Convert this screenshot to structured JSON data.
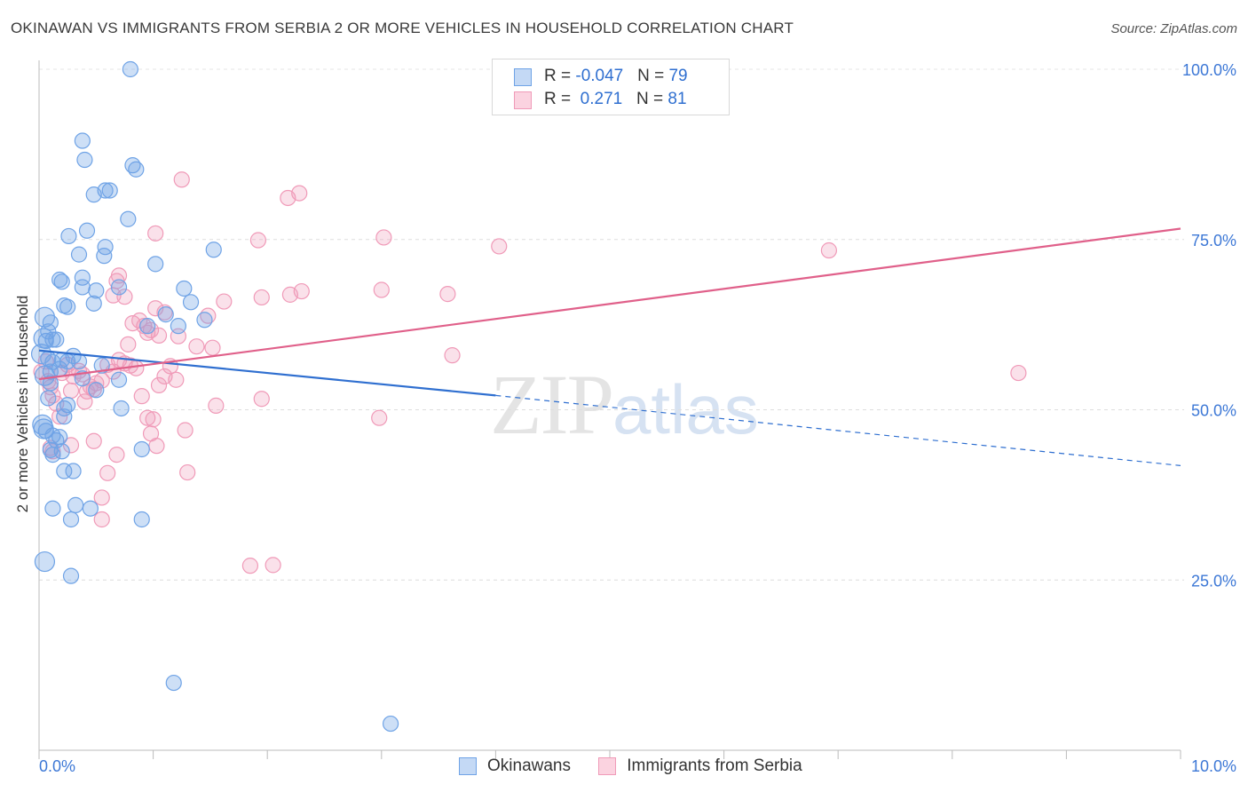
{
  "title": "OKINAWAN VS IMMIGRANTS FROM SERBIA 2 OR MORE VEHICLES IN HOUSEHOLD CORRELATION CHART",
  "source": "Source: ZipAtlas.com",
  "watermark": {
    "zip": "ZIP",
    "atlas": "atlas"
  },
  "colors": {
    "blue": "#6fa3e6",
    "pink": "#f09ab8",
    "blue_line": "#2f6fd0",
    "pink_line": "#e0608a",
    "tick_label": "#3d78d6"
  },
  "legend_top": [
    {
      "r_label": "R = ",
      "r_value": "-0.047",
      "n_label": "N = ",
      "n_value": "79"
    },
    {
      "r_label": "R = ",
      "r_value": " 0.271",
      "n_label": "N = ",
      "n_value": "81"
    }
  ],
  "legend_bottom": [
    "Okinawans",
    "Immigrants from Serbia"
  ],
  "chart_data": {
    "type": "scatter",
    "title": "OKINAWAN VS IMMIGRANTS FROM SERBIA 2 OR MORE VEHICLES IN HOUSEHOLD CORRELATION CHART",
    "xlabel": "",
    "ylabel": "2 or more Vehicles in Household",
    "xlim": [
      0,
      10
    ],
    "ylim": [
      0,
      100
    ],
    "x_tick_labels": [
      "0.0%",
      "10.0%"
    ],
    "y_ticks": [
      25,
      50,
      75,
      100
    ],
    "y_tick_labels": [
      "25.0%",
      "50.0%",
      "75.0%",
      "100.0%"
    ],
    "grid": true,
    "series": [
      {
        "name": "Okinawans",
        "R": -0.047,
        "N": 79,
        "trend": {
          "x0": 0,
          "y0": 58.7,
          "x1": 4,
          "y1": 52.1,
          "dashed_to_x": 10,
          "dashed_to_y": 41.8
        },
        "points": [
          [
            0.02,
            58.2
          ],
          [
            0.04,
            60.5
          ],
          [
            0.06,
            60.1
          ],
          [
            0.08,
            61.5
          ],
          [
            0.05,
            63.6
          ],
          [
            0.1,
            62.8
          ],
          [
            0.12,
            60.3
          ],
          [
            0.15,
            60.3
          ],
          [
            0.18,
            69.1
          ],
          [
            0.2,
            68.8
          ],
          [
            0.22,
            65.3
          ],
          [
            0.25,
            65.1
          ],
          [
            0.08,
            57.5
          ],
          [
            0.12,
            57.0
          ],
          [
            0.2,
            57.3
          ],
          [
            0.25,
            57.1
          ],
          [
            0.3,
            57.9
          ],
          [
            0.35,
            57.1
          ],
          [
            0.18,
            56.0
          ],
          [
            0.1,
            55.6
          ],
          [
            0.05,
            55.0
          ],
          [
            0.1,
            53.9
          ],
          [
            0.08,
            51.7
          ],
          [
            0.03,
            47.8
          ],
          [
            0.04,
            47.2
          ],
          [
            0.06,
            46.9
          ],
          [
            0.12,
            46.2
          ],
          [
            0.18,
            46.0
          ],
          [
            0.15,
            45.5
          ],
          [
            0.2,
            43.9
          ],
          [
            0.1,
            44.1
          ],
          [
            0.12,
            43.4
          ],
          [
            0.22,
            41.0
          ],
          [
            0.3,
            41.0
          ],
          [
            0.12,
            35.5
          ],
          [
            0.32,
            36.0
          ],
          [
            0.45,
            35.5
          ],
          [
            0.28,
            33.9
          ],
          [
            0.9,
            33.9
          ],
          [
            0.05,
            27.7
          ],
          [
            0.28,
            25.6
          ],
          [
            1.18,
            9.9
          ],
          [
            3.08,
            3.9
          ],
          [
            0.8,
            100.0
          ],
          [
            0.38,
            89.5
          ],
          [
            0.4,
            86.7
          ],
          [
            0.82,
            85.9
          ],
          [
            0.85,
            85.3
          ],
          [
            0.48,
            81.6
          ],
          [
            0.58,
            82.2
          ],
          [
            0.62,
            82.2
          ],
          [
            0.78,
            78.0
          ],
          [
            0.42,
            76.3
          ],
          [
            0.26,
            75.5
          ],
          [
            0.58,
            73.9
          ],
          [
            0.35,
            72.8
          ],
          [
            0.57,
            72.6
          ],
          [
            1.02,
            71.4
          ],
          [
            1.53,
            73.5
          ],
          [
            0.38,
            69.4
          ],
          [
            0.38,
            68.0
          ],
          [
            0.5,
            67.5
          ],
          [
            0.7,
            68.0
          ],
          [
            1.27,
            67.8
          ],
          [
            0.48,
            65.6
          ],
          [
            1.33,
            65.8
          ],
          [
            1.45,
            63.2
          ],
          [
            1.11,
            64.0
          ],
          [
            0.95,
            62.3
          ],
          [
            1.22,
            62.3
          ],
          [
            0.55,
            56.5
          ],
          [
            0.38,
            54.6
          ],
          [
            0.25,
            50.7
          ],
          [
            0.22,
            50.2
          ],
          [
            0.5,
            52.9
          ],
          [
            0.7,
            54.4
          ],
          [
            0.72,
            50.2
          ],
          [
            0.9,
            44.2
          ],
          [
            0.22,
            49.0
          ]
        ]
      },
      {
        "name": "Immigrants from Serbia",
        "R": 0.271,
        "N": 81,
        "trend": {
          "x0": 0,
          "y0": 54.5,
          "x1": 10,
          "y1": 76.6
        },
        "points": [
          [
            0.02,
            55.6
          ],
          [
            0.06,
            57.1
          ],
          [
            0.08,
            54.2
          ],
          [
            0.1,
            53.3
          ],
          [
            0.12,
            52.1
          ],
          [
            0.15,
            50.9
          ],
          [
            0.18,
            49.0
          ],
          [
            0.2,
            55.4
          ],
          [
            0.25,
            56.6
          ],
          [
            0.28,
            52.8
          ],
          [
            0.3,
            54.9
          ],
          [
            0.35,
            55.7
          ],
          [
            0.38,
            55.2
          ],
          [
            0.4,
            51.2
          ],
          [
            0.42,
            52.7
          ],
          [
            0.45,
            53.4
          ],
          [
            0.48,
            53.0
          ],
          [
            0.5,
            53.9
          ],
          [
            0.55,
            54.3
          ],
          [
            0.6,
            56.6
          ],
          [
            0.65,
            55.6
          ],
          [
            0.7,
            57.3
          ],
          [
            0.75,
            56.8
          ],
          [
            0.8,
            56.5
          ],
          [
            0.85,
            56.1
          ],
          [
            0.9,
            52.0
          ],
          [
            0.95,
            48.8
          ],
          [
            1.0,
            48.6
          ],
          [
            1.05,
            53.6
          ],
          [
            1.1,
            54.9
          ],
          [
            1.15,
            56.4
          ],
          [
            1.2,
            54.4
          ],
          [
            0.1,
            44.4
          ],
          [
            0.12,
            43.9
          ],
          [
            0.28,
            44.8
          ],
          [
            0.48,
            45.4
          ],
          [
            0.68,
            43.4
          ],
          [
            0.98,
            46.5
          ],
          [
            1.03,
            44.7
          ],
          [
            1.28,
            47.0
          ],
          [
            1.3,
            40.8
          ],
          [
            0.6,
            40.7
          ],
          [
            0.55,
            37.1
          ],
          [
            0.55,
            33.9
          ],
          [
            0.65,
            66.8
          ],
          [
            0.68,
            68.9
          ],
          [
            0.7,
            69.7
          ],
          [
            0.75,
            66.6
          ],
          [
            0.82,
            62.7
          ],
          [
            0.88,
            63.1
          ],
          [
            0.92,
            62.3
          ],
          [
            0.95,
            61.3
          ],
          [
            0.98,
            61.7
          ],
          [
            1.05,
            60.9
          ],
          [
            0.78,
            59.6
          ],
          [
            1.02,
            64.9
          ],
          [
            1.1,
            64.3
          ],
          [
            1.22,
            60.8
          ],
          [
            1.38,
            59.3
          ],
          [
            1.48,
            63.8
          ],
          [
            1.52,
            59.1
          ],
          [
            1.62,
            65.9
          ],
          [
            1.95,
            66.5
          ],
          [
            2.2,
            66.9
          ],
          [
            2.3,
            67.4
          ],
          [
            3.0,
            67.6
          ],
          [
            3.58,
            67.0
          ],
          [
            1.02,
            75.9
          ],
          [
            1.25,
            83.8
          ],
          [
            1.92,
            74.9
          ],
          [
            2.18,
            81.1
          ],
          [
            2.28,
            81.8
          ],
          [
            3.02,
            75.3
          ],
          [
            4.03,
            74.0
          ],
          [
            6.92,
            73.4
          ],
          [
            3.62,
            58.0
          ],
          [
            8.58,
            55.4
          ],
          [
            1.55,
            50.6
          ],
          [
            1.95,
            51.6
          ],
          [
            2.98,
            48.8
          ],
          [
            1.85,
            27.1
          ],
          [
            2.05,
            27.2
          ]
        ]
      }
    ]
  }
}
